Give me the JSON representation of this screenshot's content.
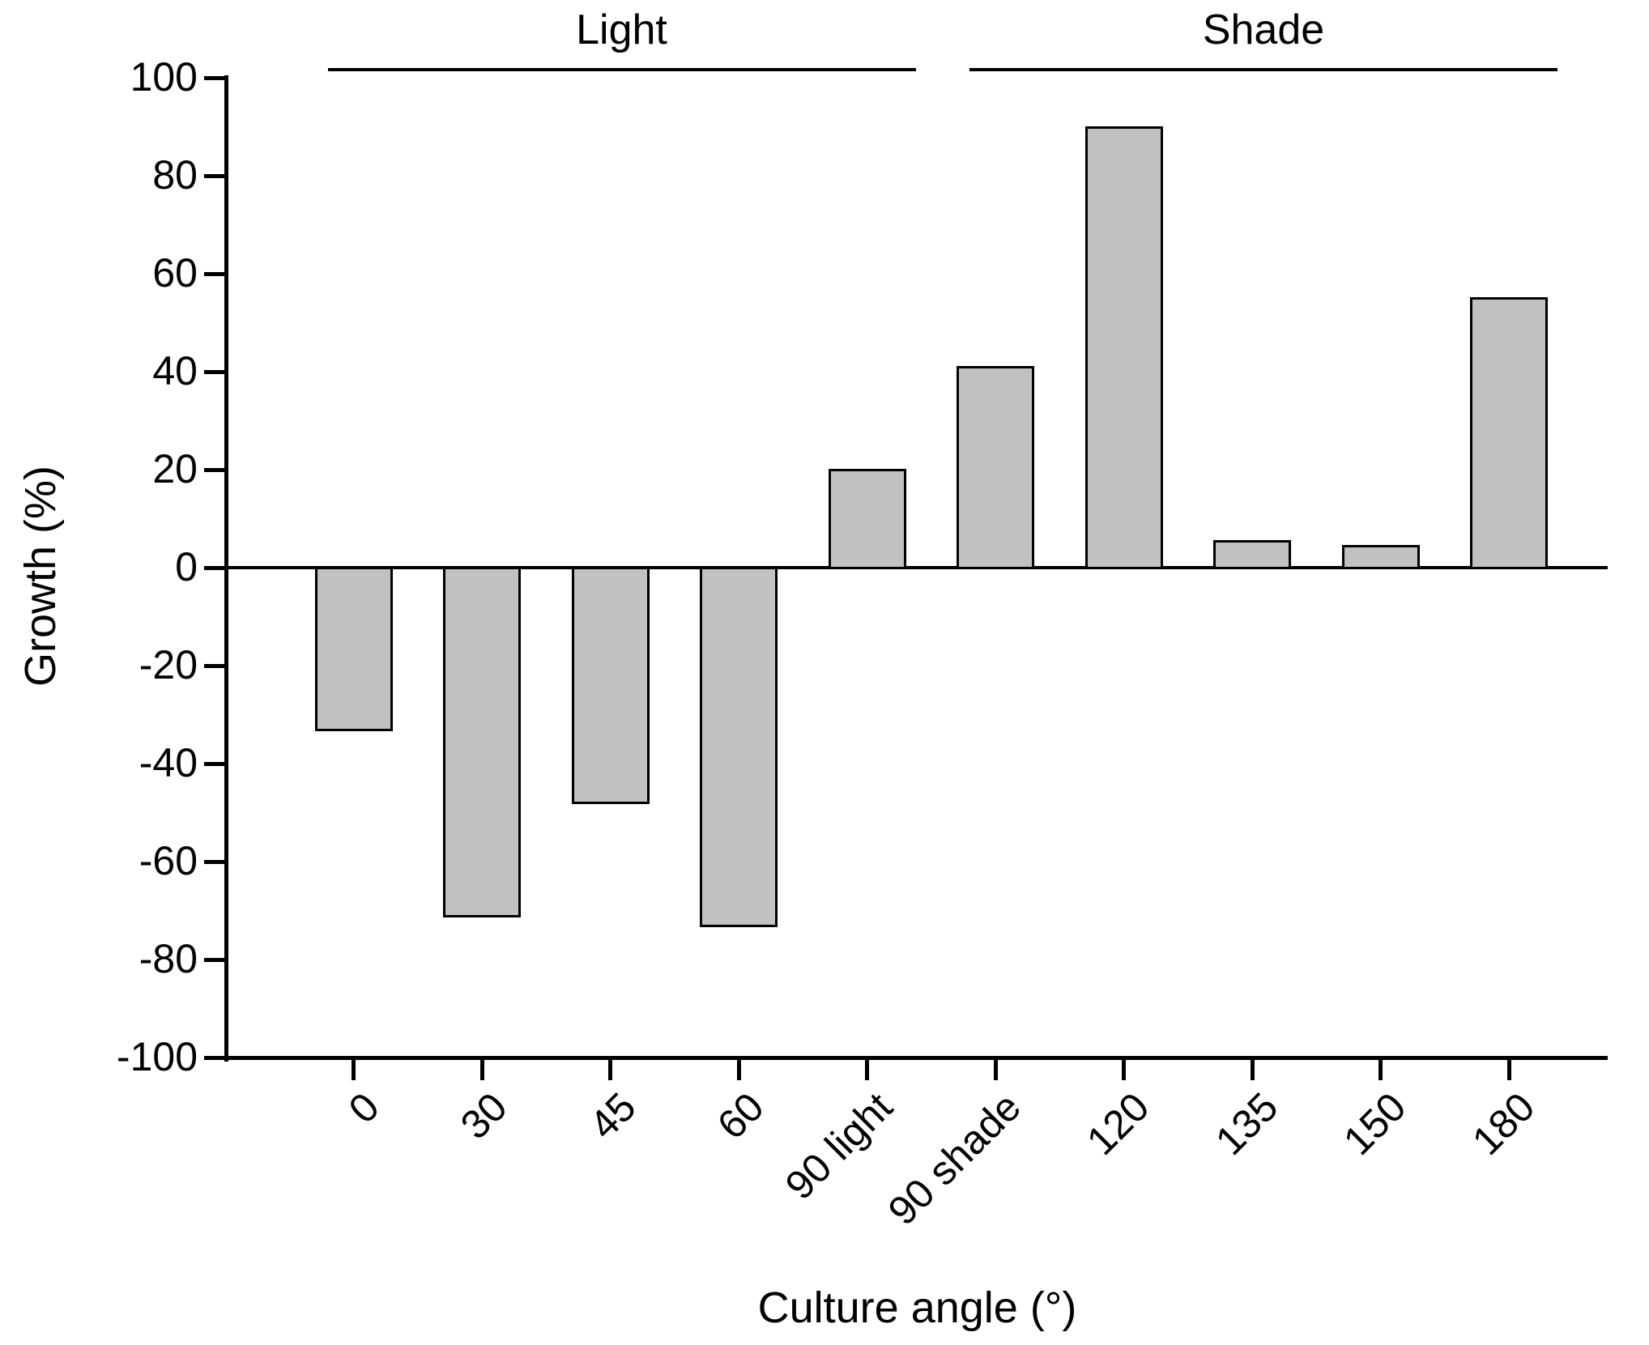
{
  "chart_data": {
    "type": "bar",
    "title": "",
    "categories": [
      "0",
      "30",
      "45",
      "60",
      "90 light",
      "90 shade",
      "120",
      "135",
      "150",
      "180"
    ],
    "values": [
      -33,
      -71,
      -48,
      -73,
      20,
      41,
      90,
      5.5,
      4.5,
      55
    ],
    "xlabel": "Culture angle (°)",
    "ylabel": "Growth (%)",
    "ylim": [
      -100,
      100
    ],
    "ytick_step": 20,
    "grid": false,
    "legend": "none",
    "bar_fill": "#C1C1C1",
    "bar_outline": "#000000",
    "group_annotations": [
      {
        "label": "Light",
        "categories": [
          "0",
          "30",
          "45",
          "60",
          "90 light"
        ]
      },
      {
        "label": "Shade",
        "categories": [
          "90 shade",
          "120",
          "135",
          "150",
          "180"
        ]
      }
    ]
  }
}
